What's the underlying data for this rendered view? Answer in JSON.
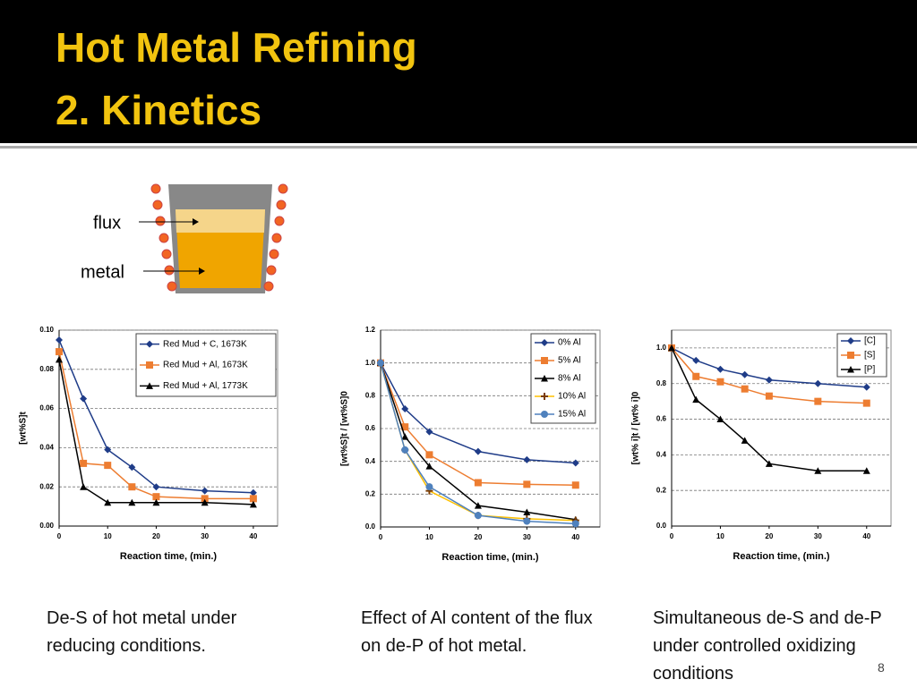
{
  "header": {
    "title_line1": "Hot Metal Refining",
    "title_line2": "2. Kinetics"
  },
  "diagram": {
    "flux": "flux",
    "metal": "metal"
  },
  "chart_data": [
    {
      "type": "line",
      "x_label": "Reaction time, (min.)",
      "y_label": "[wt%S]t",
      "xlim": [
        0,
        45
      ],
      "xticks": [
        0,
        10,
        20,
        30,
        40
      ],
      "ylim": [
        0,
        0.1
      ],
      "yticks": [
        {
          "value": 0,
          "label": "0.00"
        },
        {
          "value": 0.02,
          "label": "0.02"
        },
        {
          "value": 0.04,
          "label": "0.04"
        },
        {
          "value": 0.06,
          "label": "0.06"
        },
        {
          "value": 0.08,
          "label": "0.08"
        },
        {
          "value": 0.1,
          "label": "0.10"
        }
      ],
      "grid": true,
      "x": [
        0,
        5,
        10,
        15,
        20,
        30,
        40
      ],
      "series": [
        {
          "name": "Red Mud + C, 1673K",
          "color": "#1f3c88",
          "marker": "diamond",
          "values": [
            0.095,
            0.065,
            0.039,
            0.03,
            0.02,
            0.018,
            0.017
          ]
        },
        {
          "name": "Red Mud + Al, 1673K",
          "color": "#ed7d31",
          "marker": "square",
          "values": [
            0.089,
            0.032,
            0.031,
            0.02,
            0.015,
            0.014,
            0.014
          ]
        },
        {
          "name": "Red Mud + Al, 1773K",
          "color": "#000000",
          "marker": "triangle",
          "values": [
            0.085,
            0.02,
            0.012,
            0.012,
            0.012,
            0.012,
            0.011
          ]
        }
      ]
    },
    {
      "type": "line",
      "x_label": "Reaction time, (min.)",
      "y_label": "[wt%S]t / [wt%S]0",
      "xlim": [
        0,
        45
      ],
      "xticks": [
        0,
        10,
        20,
        30,
        40
      ],
      "ylim": [
        0,
        1.2
      ],
      "yticks": [
        {
          "value": 0,
          "label": "0.0"
        },
        {
          "value": 0.2,
          "label": "0.2"
        },
        {
          "value": 0.4,
          "label": "0.4"
        },
        {
          "value": 0.6,
          "label": "0.6"
        },
        {
          "value": 0.8,
          "label": "0.8"
        },
        {
          "value": 1,
          "label": "1.0"
        },
        {
          "value": 1.2,
          "label": "1.2"
        }
      ],
      "grid": true,
      "x": [
        0,
        5,
        10,
        20,
        30,
        40
      ],
      "series": [
        {
          "name": "0% Al",
          "color": "#1f3c88",
          "marker": "diamond",
          "values": [
            1.0,
            0.72,
            0.58,
            0.46,
            0.41,
            0.39
          ]
        },
        {
          "name": "5% Al",
          "color": "#ed7d31",
          "marker": "square",
          "values": [
            1.0,
            0.61,
            0.44,
            0.27,
            0.26,
            0.255
          ]
        },
        {
          "name": "8% Al",
          "color": "#000000",
          "marker": "triangle",
          "values": [
            1.0,
            0.55,
            0.37,
            0.13,
            0.09,
            0.045
          ]
        },
        {
          "name": "10% Al",
          "color": "#ffc000",
          "marker": "plus",
          "values": [
            1.0,
            0.47,
            0.22,
            0.07,
            0.05,
            0.04
          ]
        },
        {
          "name": "15% Al",
          "color": "#4f81bd",
          "marker": "circle",
          "values": [
            1.0,
            0.47,
            0.245,
            0.07,
            0.035,
            0.02
          ]
        }
      ]
    },
    {
      "type": "line",
      "x_label": "Reaction time, (min.)",
      "y_label": "[wt% i]t / [wt% i]0",
      "xlim": [
        0,
        45
      ],
      "xticks": [
        0,
        10,
        20,
        30,
        40
      ],
      "ylim": [
        0,
        1.1
      ],
      "yticks": [
        {
          "value": 0,
          "label": "0.0"
        },
        {
          "value": 0.2,
          "label": "0.2"
        },
        {
          "value": 0.4,
          "label": "0.4"
        },
        {
          "value": 0.6,
          "label": "0.6"
        },
        {
          "value": 0.8,
          "label": "0.8"
        },
        {
          "value": 1,
          "label": "1.0"
        }
      ],
      "grid": true,
      "x": [
        0,
        5,
        10,
        15,
        20,
        30,
        40
      ],
      "series": [
        {
          "name": "[C]",
          "color": "#1f3c88",
          "marker": "diamond",
          "values": [
            1.0,
            0.93,
            0.88,
            0.85,
            0.82,
            0.8,
            0.78
          ]
        },
        {
          "name": "[S]",
          "color": "#ed7d31",
          "marker": "square",
          "values": [
            1.0,
            0.84,
            0.81,
            0.77,
            0.73,
            0.7,
            0.69
          ]
        },
        {
          "name": "[P]",
          "color": "#000000",
          "marker": "triangle",
          "values": [
            1.0,
            0.71,
            0.6,
            0.48,
            0.35,
            0.31,
            0.31
          ]
        }
      ]
    }
  ],
  "captions": [
    "De-S of hot metal under reducing conditions.",
    "Effect of Al content of the flux on de-P of hot metal.",
    "Simultaneous de-S and de-P under controlled oxidizing conditions"
  ],
  "page_number": "8"
}
